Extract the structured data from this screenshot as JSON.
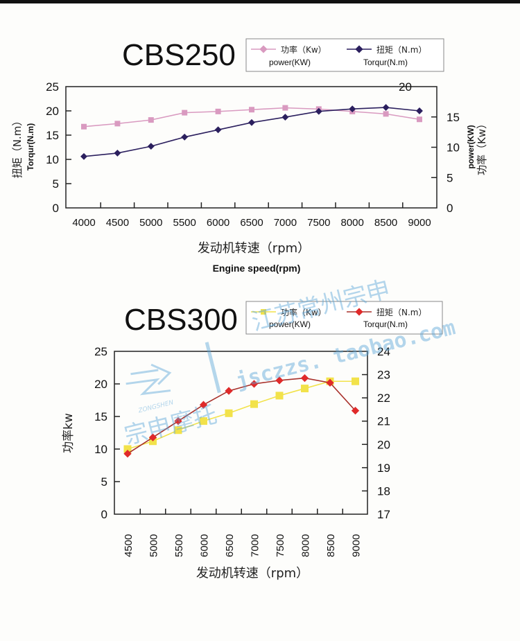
{
  "watermark": {
    "brand_cn": "宗申摩托",
    "brand_en": "ZONGSHEN",
    "shop_cn": "江苏常州宗申",
    "shop_url": "jsczzs. taobao.com"
  },
  "chart_data": [
    {
      "type": "line",
      "title": "CBS250",
      "x": [
        4000,
        4500,
        5000,
        5500,
        6000,
        6500,
        7000,
        7500,
        8000,
        8500,
        9000
      ],
      "x_tick_labels": [
        "4000",
        "4500",
        "5000",
        "5500",
        "6000",
        "6500",
        "7000",
        "7500",
        "8000",
        "8500",
        "9000"
      ],
      "xlabel": "发动机转速（rpm）",
      "xlabel_en": "Engine speed(rpm)",
      "ylabel": "扭矩（N.m）",
      "ylabel_en": "Torqur(N.m)",
      "ylim": [
        0,
        25
      ],
      "y_ticks": [
        "0",
        "5",
        "10",
        "15",
        "20",
        "25"
      ],
      "y2label": "功率（Kw）",
      "y2label_en": "power(KW)",
      "y2lim": [
        0,
        20
      ],
      "y2_ticks": [
        "0",
        "5",
        "10",
        "15",
        "20"
      ],
      "grid": false,
      "legend_position": "top-right",
      "series": [
        {
          "name": "功率（Kw）",
          "name_en": "power(KW)",
          "axis": "right",
          "marker": "square",
          "color": "#d99ac0",
          "values": [
            13.4,
            13.9,
            14.5,
            15.7,
            15.9,
            16.2,
            16.5,
            16.3,
            15.9,
            15.5,
            14.6
          ]
        },
        {
          "name": "扭矩（N.m）",
          "name_en": "Torqur(N.m)",
          "axis": "left",
          "marker": "diamond",
          "color": "#2b1f5e",
          "values": [
            10.6,
            11.3,
            12.7,
            14.6,
            16.1,
            17.6,
            18.7,
            19.9,
            20.4,
            20.7,
            20.0
          ]
        }
      ]
    },
    {
      "type": "line",
      "title": "CBS300",
      "x": [
        4500,
        5000,
        5500,
        6000,
        6500,
        7000,
        7500,
        8000,
        8500,
        9000
      ],
      "x_tick_labels": [
        "4500",
        "5000",
        "5500",
        "6000",
        "6500",
        "7000",
        "7500",
        "8000",
        "8500",
        "9000"
      ],
      "xlabel": "发动机转速（rpm）",
      "ylabel": "功率kw",
      "ylim": [
        0,
        25
      ],
      "y_ticks": [
        "0",
        "5",
        "10",
        "15",
        "20",
        "25"
      ],
      "y2lim": [
        17,
        24
      ],
      "y2_ticks": [
        "17",
        "18",
        "19",
        "20",
        "21",
        "22",
        "23",
        "24"
      ],
      "grid": false,
      "legend_position": "top-right",
      "series": [
        {
          "name": "功率（Kw）",
          "name_en": "power(KW)",
          "axis": "left",
          "marker": "square",
          "color": "#f2e24a",
          "values": [
            10.0,
            11.2,
            12.9,
            14.3,
            15.5,
            16.9,
            18.2,
            19.3,
            20.4,
            20.4
          ]
        },
        {
          "name": "扭矩（N.m）",
          "name_en": "Torqur(N.m)",
          "axis": "right",
          "marker": "diamond",
          "color": "#e02a2a",
          "line_color": "#a8302a",
          "values": [
            19.6,
            20.3,
            21.0,
            21.7,
            22.3,
            22.6,
            22.75,
            22.85,
            22.65,
            21.45
          ]
        }
      ]
    }
  ]
}
